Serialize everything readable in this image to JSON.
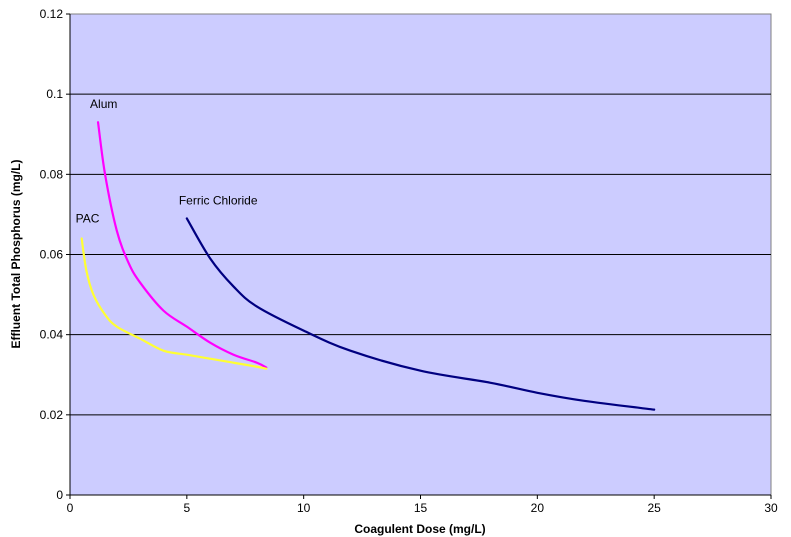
{
  "chart_data": {
    "type": "line",
    "title": "",
    "xlabel": "Coagulent Dose (mg/L)",
    "ylabel": "Effluent Total Phosphorus (mg/L)",
    "xlim": [
      0,
      30
    ],
    "ylim": [
      0,
      0.12
    ],
    "x_ticks": [
      0,
      5,
      10,
      15,
      20,
      25,
      30
    ],
    "y_ticks": [
      0,
      0.02,
      0.04,
      0.06,
      0.08,
      0.1,
      0.12
    ],
    "x_tick_labels": [
      "0",
      "5",
      "10",
      "15",
      "20",
      "25",
      "30"
    ],
    "y_tick_labels": [
      "0",
      "0.02",
      "0.04",
      "0.06",
      "0.08",
      "0.1",
      "0.12"
    ],
    "grid": "horizontal",
    "legend": "none",
    "plot_background": "#ccccff",
    "series": [
      {
        "name": "Alum",
        "color": "#ff00ff",
        "points": [
          [
            1.2,
            0.093
          ],
          [
            1.5,
            0.08
          ],
          [
            2.0,
            0.066
          ],
          [
            2.5,
            0.058
          ],
          [
            3.0,
            0.053
          ],
          [
            4.0,
            0.046
          ],
          [
            5.0,
            0.042
          ],
          [
            6.0,
            0.038
          ],
          [
            7.0,
            0.035
          ],
          [
            8.0,
            0.033
          ],
          [
            8.4,
            0.0318
          ]
        ]
      },
      {
        "name": "PAC",
        "color": "#ffff33",
        "points": [
          [
            0.5,
            0.064
          ],
          [
            0.7,
            0.056
          ],
          [
            1.0,
            0.05
          ],
          [
            1.5,
            0.045
          ],
          [
            2.0,
            0.042
          ],
          [
            3.0,
            0.039
          ],
          [
            4.0,
            0.036
          ],
          [
            5.0,
            0.035
          ],
          [
            6.0,
            0.034
          ],
          [
            7.0,
            0.033
          ],
          [
            8.0,
            0.032
          ],
          [
            8.4,
            0.0315
          ]
        ]
      },
      {
        "name": "Ferric Chloride",
        "color": "#000080",
        "points": [
          [
            5.0,
            0.069
          ],
          [
            6.0,
            0.059
          ],
          [
            7.0,
            0.052
          ],
          [
            8.0,
            0.047
          ],
          [
            10.0,
            0.041
          ],
          [
            12.0,
            0.036
          ],
          [
            15.0,
            0.031
          ],
          [
            18.0,
            0.028
          ],
          [
            20.0,
            0.0255
          ],
          [
            22.0,
            0.0235
          ],
          [
            25.0,
            0.0213
          ]
        ]
      }
    ]
  }
}
